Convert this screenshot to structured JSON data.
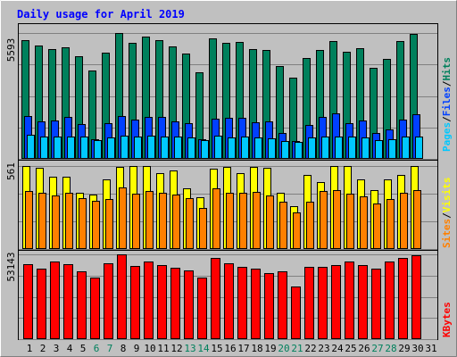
{
  "title": "Daily usage for April 2019",
  "colors": {
    "hits": "#00805c",
    "files": "#0040ff",
    "pages": "#00c8ff",
    "visits": "#ffff00",
    "sites": "#ff8000",
    "kbytes": "#ff0000",
    "title": "#0000ff",
    "background": "#c0c0c0",
    "weekend_label": "#00805c"
  },
  "labels": {
    "pages": "Pages",
    "files": "Files",
    "hits": "Hits",
    "sites": "Sites",
    "visits": "Visits",
    "kbytes": "KBytes",
    "sep": "/"
  },
  "chart_data": {
    "type": "bar",
    "title": "Daily usage for April 2019",
    "days": [
      "1",
      "2",
      "3",
      "4",
      "5",
      "6",
      "7",
      "8",
      "9",
      "10",
      "11",
      "12",
      "13",
      "14",
      "15",
      "16",
      "17",
      "18",
      "19",
      "20",
      "21",
      "22",
      "23",
      "24",
      "25",
      "26",
      "27",
      "28",
      "29",
      "30",
      "31"
    ],
    "weekend_days": [
      "6",
      "7",
      "13",
      "14",
      "20",
      "21",
      "27",
      "28"
    ],
    "panels": [
      {
        "name": "hits-files-pages",
        "max_label": "5593",
        "ymax": 5593,
        "series": [
          {
            "name": "Hits",
            "color": "#00805c",
            "values": [
              5285,
              5035,
              4880,
              4955,
              4575,
              3920,
              4730,
              5593,
              5150,
              5430,
              5285,
              5000,
              4700,
              3865,
              5360,
              5150,
              5190,
              4885,
              4845,
              4120,
              3620,
              4490,
              4840,
              5240,
              4745,
              4930,
              4035,
              4425,
              5220,
              5560,
              null
            ]
          },
          {
            "name": "Files",
            "color": "#0040ff",
            "values": [
              1910,
              1680,
              1700,
              1860,
              1530,
              890,
              1570,
              1890,
              1740,
              1870,
              1880,
              1660,
              1600,
              870,
              1780,
              1830,
              1820,
              1640,
              1650,
              1160,
              780,
              1500,
              1880,
              2030,
              1600,
              1690,
              1160,
              1300,
              1760,
              2000,
              null
            ]
          },
          {
            "name": "Pages",
            "color": "#00c8ff",
            "values": [
              1060,
              990,
              1000,
              1010,
              1000,
              840,
              950,
              1020,
              1010,
              1030,
              1000,
              990,
              960,
              830,
              1020,
              950,
              1000,
              950,
              920,
              810,
              760,
              970,
              1000,
              1000,
              990,
              970,
              850,
              890,
              1000,
              1010,
              null
            ]
          }
        ]
      },
      {
        "name": "sites-visits",
        "max_label": "561",
        "ymax": 561,
        "series": [
          {
            "name": "Visits",
            "color": "#ffff00",
            "values": [
              561,
              550,
              490,
              490,
              380,
              365,
              470,
              555,
              560,
              561,
              510,
              530,
              410,
              350,
              545,
              555,
              510,
              555,
              550,
              380,
              290,
              500,
              450,
              561,
              560,
              470,
              400,
              470,
              500,
              561,
              null
            ]
          },
          {
            "name": "Sites",
            "color": "#ff8000",
            "values": [
              395,
              380,
              360,
              380,
              345,
              325,
              340,
              415,
              375,
              395,
              380,
              370,
              345,
              275,
              410,
              380,
              380,
              385,
              360,
              320,
              250,
              320,
              390,
              400,
              375,
              355,
              310,
              335,
              380,
              400,
              null
            ]
          }
        ]
      },
      {
        "name": "kbytes",
        "max_label": "53143",
        "ymax": 53143,
        "series": [
          {
            "name": "KBytes",
            "color": "#ff0000",
            "values": [
              46830,
              44160,
              48670,
              46830,
              42700,
              38500,
              47600,
              53143,
              46000,
              48400,
              46200,
              45000,
              43000,
              38500,
              50900,
              47740,
              45400,
              44200,
              41300,
              42700,
              33200,
              45400,
              45200,
              46500,
              48670,
              46200,
              44400,
              48600,
              50800,
              52600,
              null
            ]
          }
        ]
      }
    ]
  }
}
